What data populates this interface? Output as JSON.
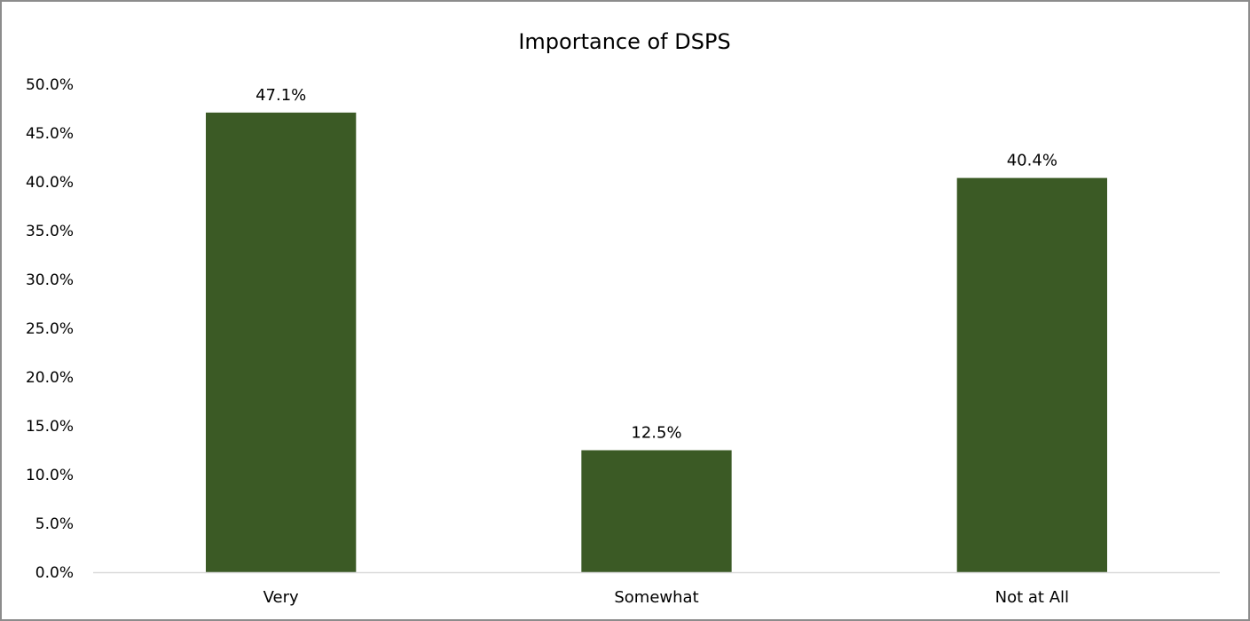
{
  "chart_data": {
    "type": "bar",
    "title": "Importance of DSPS",
    "categories": [
      "Very",
      "Somewhat",
      "Not at All"
    ],
    "values": [
      47.1,
      12.5,
      40.4
    ],
    "data_labels": [
      "47.1%",
      "12.5%",
      "40.4%"
    ],
    "y_ticks": [
      "0.0%",
      "5.0%",
      "10.0%",
      "15.0%",
      "20.0%",
      "25.0%",
      "30.0%",
      "35.0%",
      "40.0%",
      "45.0%",
      "50.0%"
    ],
    "ylim": [
      0,
      50
    ],
    "grid": false,
    "legend": "none",
    "colors": {
      "bar": "#3b5a25",
      "axis": "#d9d9d9",
      "border": "#8c8c8c"
    }
  }
}
